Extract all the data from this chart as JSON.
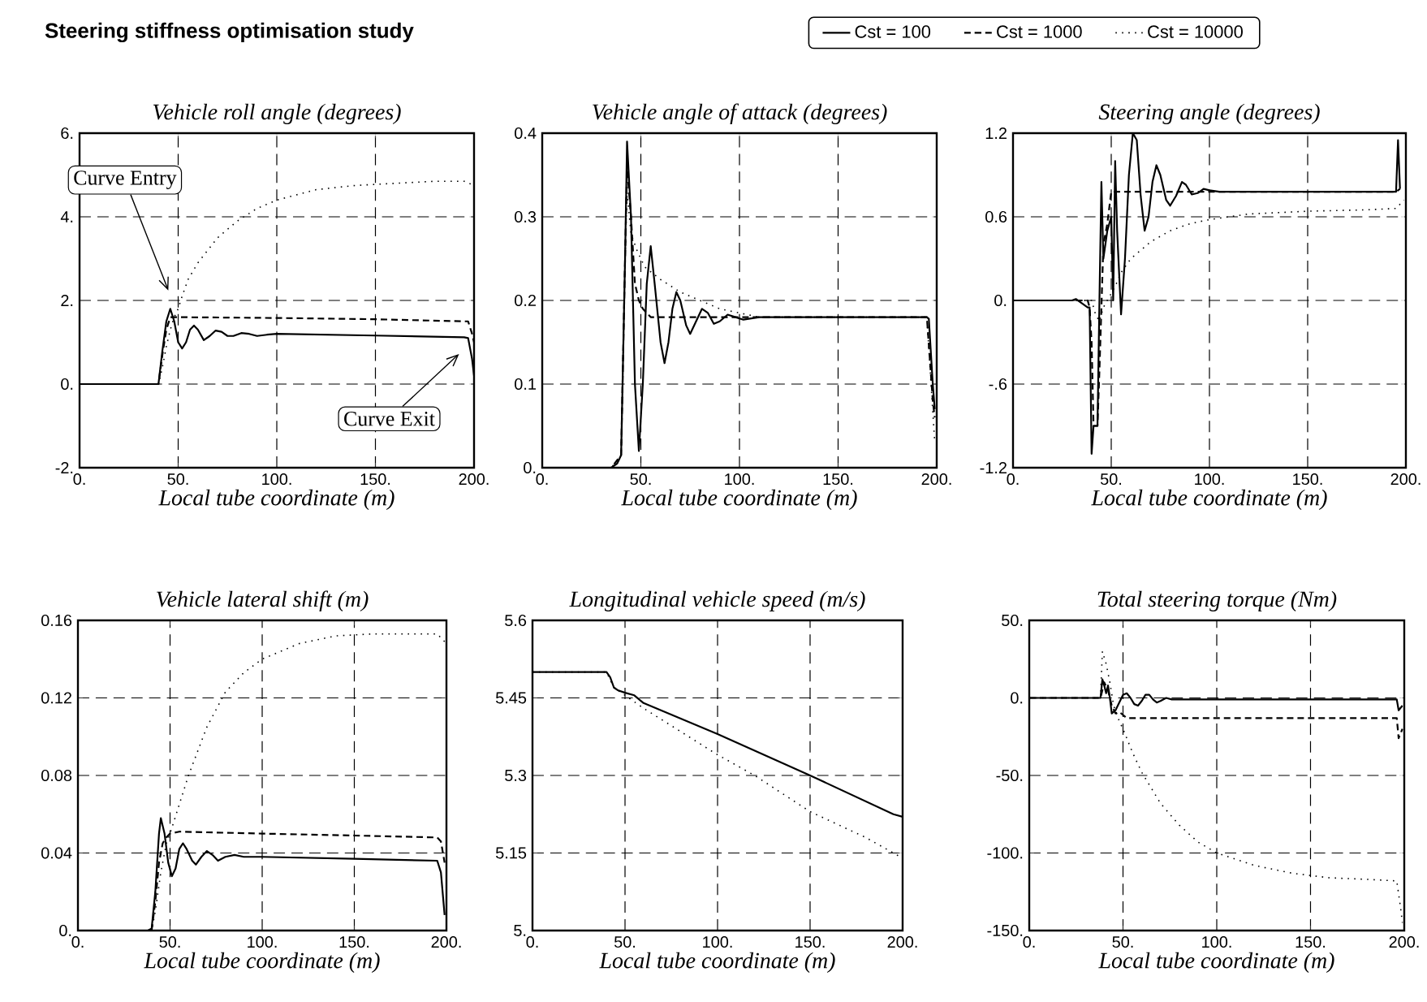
{
  "chart_data": [
    {
      "type": "line",
      "title": "Steering stiffness optimisation study",
      "subtitle": "Vehicle roll angle (degrees)",
      "xlabel": "Local tube coordinate (m)",
      "legend": "top",
      "grid": true,
      "xlim": [
        0,
        200
      ],
      "xticks": [
        {
          "value": 0,
          "label": "0."
        },
        {
          "value": 50,
          "label": "50."
        },
        {
          "value": 100,
          "label": "100."
        },
        {
          "value": 150,
          "label": "150."
        },
        {
          "value": 200,
          "label": "200."
        }
      ],
      "ylim": [
        -2,
        6
      ],
      "yticks": [
        {
          "value": -2,
          "label": "-2."
        },
        {
          "value": 0,
          "label": "0."
        },
        {
          "value": 2,
          "label": "2."
        },
        {
          "value": 4,
          "label": "4."
        },
        {
          "value": 6,
          "label": "6."
        }
      ],
      "annotations": [
        "Curve Entry",
        "Curve Exit"
      ],
      "series": [
        {
          "name": "Cst = 100",
          "color": "#000000",
          "line_style": "solid",
          "x": [
            0,
            40,
            42,
            44,
            46,
            48,
            50,
            52,
            54,
            56,
            58,
            60,
            63,
            66,
            69,
            72,
            75,
            78,
            82,
            86,
            90,
            95,
            100,
            150,
            195,
            197,
            199,
            200
          ],
          "values": [
            0,
            0,
            0.8,
            1.5,
            1.8,
            1.5,
            1.0,
            0.85,
            1.0,
            1.3,
            1.4,
            1.3,
            1.05,
            1.15,
            1.28,
            1.25,
            1.15,
            1.15,
            1.22,
            1.2,
            1.15,
            1.18,
            1.2,
            1.16,
            1.12,
            1.1,
            0.6,
            0.2
          ]
        },
        {
          "name": "Cst = 1000",
          "color": "#000000",
          "line_style": "dashed",
          "x": [
            0,
            40,
            42,
            44,
            46,
            48,
            50,
            100,
            150,
            195,
            197,
            199,
            200
          ],
          "values": [
            0,
            0,
            0.7,
            1.3,
            1.6,
            1.6,
            1.6,
            1.58,
            1.55,
            1.5,
            1.5,
            1.2,
            1.0
          ]
        },
        {
          "name": "Cst = 10000",
          "color": "#000000",
          "line_style": "dotted",
          "x": [
            0,
            40,
            42,
            44,
            46,
            48,
            50,
            52,
            55,
            60,
            70,
            80,
            90,
            100,
            120,
            140,
            160,
            180,
            195,
            200
          ],
          "values": [
            0,
            0,
            0.4,
            0.9,
            1.3,
            1.6,
            1.8,
            2.1,
            2.5,
            2.9,
            3.5,
            3.9,
            4.2,
            4.4,
            4.65,
            4.75,
            4.8,
            4.85,
            4.85,
            4.75
          ]
        }
      ]
    },
    {
      "type": "line",
      "title": "Vehicle angle of attack (degrees)",
      "xlabel": "Local tube coordinate (m)",
      "grid": true,
      "xlim": [
        0,
        200
      ],
      "xticks": [
        {
          "value": 0,
          "label": "0."
        },
        {
          "value": 50,
          "label": "50."
        },
        {
          "value": 100,
          "label": "100."
        },
        {
          "value": 150,
          "label": "150."
        },
        {
          "value": 200,
          "label": "200."
        }
      ],
      "ylim": [
        0,
        0.4
      ],
      "yticks": [
        {
          "value": 0,
          "label": "0."
        },
        0.1,
        0.2,
        0.3,
        0.4
      ],
      "series": [
        {
          "color": "#000000",
          "line_style": "solid",
          "x": [
            0,
            35,
            38,
            40,
            42,
            43,
            45,
            47,
            49,
            51,
            53,
            55,
            57,
            60,
            62,
            64,
            66,
            68,
            70,
            73,
            75,
            78,
            81,
            84,
            87,
            90,
            94,
            98,
            102,
            110,
            150,
            195,
            196,
            198,
            199
          ],
          "values": [
            0,
            0,
            0.005,
            0.015,
            0.25,
            0.39,
            0.3,
            0.1,
            0.02,
            0.1,
            0.22,
            0.265,
            0.22,
            0.15,
            0.125,
            0.15,
            0.19,
            0.21,
            0.2,
            0.17,
            0.16,
            0.175,
            0.19,
            0.185,
            0.172,
            0.175,
            0.183,
            0.18,
            0.177,
            0.18,
            0.18,
            0.18,
            0.178,
            0.1,
            0.07
          ]
        },
        {
          "color": "#000000",
          "line_style": "dashed",
          "x": [
            0,
            35,
            40,
            42,
            43,
            45,
            47,
            49,
            51,
            55,
            150,
            195,
            198,
            199
          ],
          "values": [
            0,
            0,
            0.015,
            0.25,
            0.36,
            0.3,
            0.22,
            0.2,
            0.19,
            0.18,
            0.18,
            0.18,
            0.08,
            0.06
          ]
        },
        {
          "color": "#000000",
          "line_style": "dotted",
          "x": [
            0,
            35,
            40,
            42,
            43,
            45,
            48,
            52,
            60,
            70,
            80,
            90,
            100,
            110,
            195,
            199
          ],
          "values": [
            0,
            0,
            0.015,
            0.25,
            0.33,
            0.28,
            0.26,
            0.24,
            0.225,
            0.21,
            0.2,
            0.19,
            0.185,
            0.18,
            0.18,
            0.03
          ]
        }
      ]
    },
    {
      "type": "line",
      "title": "Steering angle (degrees)",
      "xlabel": "Local tube coordinate (m)",
      "grid": true,
      "xlim": [
        0,
        200
      ],
      "xticks": [
        {
          "value": 0,
          "label": "0."
        },
        {
          "value": 50,
          "label": "50."
        },
        {
          "value": 100,
          "label": "100."
        },
        {
          "value": 150,
          "label": "150."
        },
        {
          "value": 200,
          "label": "200."
        }
      ],
      "ylim": [
        -1.2,
        1.2
      ],
      "yticks": [
        -1.2,
        {
          "value": -0.6,
          "label": "-.6"
        },
        {
          "value": 0,
          "label": "0."
        },
        0.6,
        1.2
      ],
      "series": [
        {
          "color": "#000000",
          "line_style": "solid",
          "x": [
            0,
            30,
            32,
            35,
            38,
            39,
            40,
            41,
            43,
            44,
            45,
            46,
            48,
            50,
            51,
            52,
            53,
            55,
            57,
            59,
            61,
            63,
            65,
            67,
            69,
            71,
            73,
            75,
            78,
            80,
            83,
            86,
            88,
            91,
            94,
            97,
            100,
            105,
            150,
            195,
            196,
            197
          ],
          "values": [
            0,
            0,
            0.01,
            -0.02,
            -0.05,
            -0.05,
            -1.1,
            -0.9,
            -0.9,
            0.0,
            0.85,
            0.3,
            0.5,
            0.6,
            0.0,
            1.0,
            0.5,
            -0.1,
            0.3,
            0.9,
            1.2,
            1.15,
            0.75,
            0.5,
            0.6,
            0.85,
            0.97,
            0.9,
            0.72,
            0.68,
            0.75,
            0.85,
            0.83,
            0.76,
            0.77,
            0.8,
            0.79,
            0.78,
            0.78,
            0.78,
            1.15,
            0.8
          ]
        },
        {
          "color": "#000000",
          "line_style": "dashed",
          "x": [
            0,
            38,
            39,
            40,
            41,
            43,
            44,
            46,
            48,
            50,
            195,
            197
          ],
          "values": [
            0,
            0,
            -0.05,
            -0.3,
            -0.9,
            -0.9,
            -0.5,
            0.4,
            0.55,
            0.78,
            0.78,
            0.8
          ]
        },
        {
          "color": "#000000",
          "line_style": "dotted",
          "x": [
            0,
            40,
            42,
            44,
            46,
            48,
            50,
            52,
            55,
            60,
            70,
            80,
            90,
            100,
            120,
            150,
            180,
            195,
            199
          ],
          "values": [
            0,
            0,
            -0.1,
            -0.15,
            -0.05,
            0.0,
            0.05,
            0.1,
            0.2,
            0.3,
            0.42,
            0.5,
            0.55,
            0.58,
            0.62,
            0.64,
            0.65,
            0.66,
            0.72
          ]
        }
      ]
    },
    {
      "type": "line",
      "title": "Vehicle lateral shift (m)",
      "xlabel": "Local tube coordinate (m)",
      "grid": true,
      "xlim": [
        0,
        200
      ],
      "xticks": [
        {
          "value": 0,
          "label": "0."
        },
        {
          "value": 50,
          "label": "50."
        },
        {
          "value": 100,
          "label": "100."
        },
        {
          "value": 150,
          "label": "150."
        },
        {
          "value": 200,
          "label": "200."
        }
      ],
      "ylim": [
        0,
        0.16
      ],
      "yticks": [
        {
          "value": 0,
          "label": "0."
        },
        0.04,
        0.08,
        0.12,
        0.16
      ],
      "series": [
        {
          "color": "#000000",
          "line_style": "solid",
          "x": [
            0,
            38,
            40,
            42,
            44,
            45,
            47,
            49,
            51,
            53,
            55,
            57,
            59,
            62,
            64,
            67,
            70,
            73,
            76,
            80,
            85,
            90,
            100,
            150,
            195,
            197,
            199
          ],
          "values": [
            0,
            0,
            0.001,
            0.02,
            0.05,
            0.058,
            0.05,
            0.035,
            0.028,
            0.032,
            0.042,
            0.045,
            0.042,
            0.036,
            0.034,
            0.038,
            0.041,
            0.039,
            0.036,
            0.038,
            0.039,
            0.038,
            0.038,
            0.037,
            0.036,
            0.03,
            0.008
          ]
        },
        {
          "color": "#000000",
          "line_style": "dashed",
          "x": [
            0,
            40,
            42,
            44,
            46,
            48,
            50,
            55,
            100,
            150,
            195,
            197,
            199
          ],
          "values": [
            0,
            0,
            0.015,
            0.035,
            0.045,
            0.048,
            0.05,
            0.051,
            0.05,
            0.049,
            0.048,
            0.046,
            0.035
          ]
        },
        {
          "color": "#000000",
          "line_style": "dotted",
          "x": [
            0,
            40,
            42,
            45,
            48,
            50,
            55,
            60,
            70,
            80,
            90,
            100,
            120,
            140,
            160,
            180,
            195,
            199
          ],
          "values": [
            0,
            0,
            0.01,
            0.03,
            0.045,
            0.05,
            0.065,
            0.08,
            0.105,
            0.123,
            0.133,
            0.14,
            0.148,
            0.152,
            0.153,
            0.153,
            0.153,
            0.149
          ]
        }
      ]
    },
    {
      "type": "line",
      "title": "Longitudinal vehicle speed (m/s)",
      "grid": true,
      "xlim": [
        0,
        200
      ],
      "xticks": [
        {
          "value": 0,
          "label": "0."
        },
        {
          "value": 50,
          "label": "50."
        },
        {
          "value": 100,
          "label": "100."
        },
        {
          "value": 150,
          "label": "150."
        },
        {
          "value": 200,
          "label": "200."
        }
      ],
      "xlabel": "Local tube coordinate (m)",
      "ylim": [
        5,
        5.6
      ],
      "yticks": [
        {
          "value": 5,
          "label": "5."
        },
        5.15,
        5.3,
        5.45,
        5.6
      ],
      "series": [
        {
          "color": "#000000",
          "line_style": "solid",
          "x": [
            0,
            40,
            42,
            44,
            46,
            50,
            55,
            60,
            100,
            150,
            195,
            200
          ],
          "values": [
            5.5,
            5.5,
            5.49,
            5.47,
            5.465,
            5.46,
            5.455,
            5.44,
            5.38,
            5.3,
            5.225,
            5.22
          ]
        },
        {
          "color": "#000000",
          "line_style": "dotted",
          "x": [
            0,
            40,
            44,
            50,
            60,
            80,
            100,
            120,
            150,
            180,
            200
          ],
          "values": [
            5.5,
            5.5,
            5.47,
            5.455,
            5.43,
            5.385,
            5.34,
            5.3,
            5.23,
            5.18,
            5.14
          ]
        }
      ]
    },
    {
      "type": "line",
      "title": "Total steering torque (Nm)",
      "xlabel": "Local tube coordinate (m)",
      "grid": true,
      "xlim": [
        0,
        200
      ],
      "xticks": [
        {
          "value": 0,
          "label": "0."
        },
        {
          "value": 50,
          "label": "50."
        },
        {
          "value": 100,
          "label": "100."
        },
        {
          "value": 150,
          "label": "150."
        },
        {
          "value": 200,
          "label": "200."
        }
      ],
      "ylim": [
        -150,
        50
      ],
      "yticks": [
        {
          "value": -150,
          "label": "-150."
        },
        {
          "value": -100,
          "label": "-100."
        },
        {
          "value": -50,
          "label": "-50."
        },
        {
          "value": 0,
          "label": "0."
        },
        {
          "value": 50,
          "label": "50."
        }
      ],
      "series": [
        {
          "color": "#000000",
          "line_style": "solid",
          "x": [
            0,
            38,
            39,
            40,
            41,
            42,
            43,
            44,
            46,
            48,
            50,
            52,
            54,
            56,
            58,
            60,
            62,
            64,
            66,
            68,
            70,
            73,
            76,
            80,
            90,
            100,
            150,
            196,
            197,
            199
          ],
          "values": [
            0,
            0,
            12,
            8,
            3,
            8,
            0,
            -10,
            -8,
            -3,
            2,
            3,
            0,
            -4,
            -5,
            -2,
            2,
            2,
            -1,
            -3,
            -2,
            0,
            -1,
            -1,
            -1,
            -1,
            -1,
            -1,
            -8,
            -5
          ]
        },
        {
          "color": "#000000",
          "line_style": "dashed",
          "x": [
            0,
            38,
            40,
            42,
            44,
            46,
            48,
            50,
            52,
            60,
            100,
            150,
            196,
            197,
            199
          ],
          "values": [
            0,
            0,
            10,
            5,
            -5,
            -10,
            -9,
            -11,
            -13,
            -13,
            -13,
            -13,
            -13,
            -26,
            -20
          ]
        },
        {
          "color": "#000000",
          "line_style": "dotted",
          "x": [
            0,
            38,
            39,
            41,
            43,
            45,
            48,
            50,
            55,
            60,
            70,
            80,
            90,
            100,
            120,
            140,
            160,
            180,
            196,
            198,
            199
          ],
          "values": [
            0,
            0,
            30,
            22,
            10,
            -5,
            -15,
            -20,
            -35,
            -48,
            -68,
            -82,
            -93,
            -100,
            -108,
            -113,
            -116,
            -117,
            -118,
            -135,
            -145
          ]
        }
      ]
    }
  ]
}
